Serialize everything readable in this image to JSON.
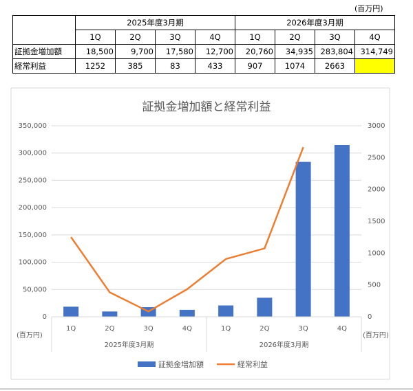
{
  "unit_label": "(百万円)",
  "table": {
    "groups": [
      "2025年度3月期",
      "2026年度3月期"
    ],
    "quarters": [
      "1Q",
      "2Q",
      "3Q",
      "4Q",
      "1Q",
      "2Q",
      "3Q",
      "4Q"
    ],
    "rows": [
      {
        "label": "証拠金増加額",
        "cells": [
          "18,500",
          "9,700",
          "17,580",
          "12,700",
          "20,760",
          "34,935",
          "283,804",
          "314,749"
        ]
      },
      {
        "label": "経常利益",
        "cells": [
          "1252",
          "385",
          "83",
          "433",
          "907",
          "1074",
          "2663"
        ]
      }
    ]
  },
  "chart_data": {
    "type": "combo",
    "title": "証拠金増加額と経常利益",
    "categories": [
      "1Q",
      "2Q",
      "3Q",
      "4Q",
      "1Q",
      "2Q",
      "3Q",
      "4Q"
    ],
    "category_groups": [
      "2025年度3月期",
      "2026年度3月期"
    ],
    "series": [
      {
        "name": "証拠金増加額",
        "type": "bar",
        "color": "#4472c4",
        "values": [
          18500,
          9700,
          17580,
          12700,
          20760,
          34935,
          283804,
          314749
        ]
      },
      {
        "name": "経常利益",
        "type": "line",
        "axis": "y2",
        "color": "#ed7d31",
        "values": [
          1252,
          385,
          83,
          433,
          907,
          1074,
          2663,
          null
        ]
      }
    ],
    "ylim": [
      0,
      350000
    ],
    "yticks": [
      0,
      {
        "value": 50000,
        "label": "50,000"
      },
      {
        "value": 100000,
        "label": "100,000"
      },
      {
        "value": 150000,
        "label": "150,000"
      },
      {
        "value": 200000,
        "label": "200,000"
      },
      {
        "value": 250000,
        "label": "250,000"
      },
      {
        "value": 300000,
        "label": "300,000"
      },
      {
        "value": 350000,
        "label": "350,000"
      }
    ],
    "y2lim": [
      0,
      3000
    ],
    "y2ticks": [
      0,
      500,
      1000,
      1500,
      2000,
      2500,
      3000
    ],
    "y_unit_label": "(百万円)",
    "y2_unit_label": "(百万円)",
    "grid": true,
    "legend": "bottom"
  }
}
